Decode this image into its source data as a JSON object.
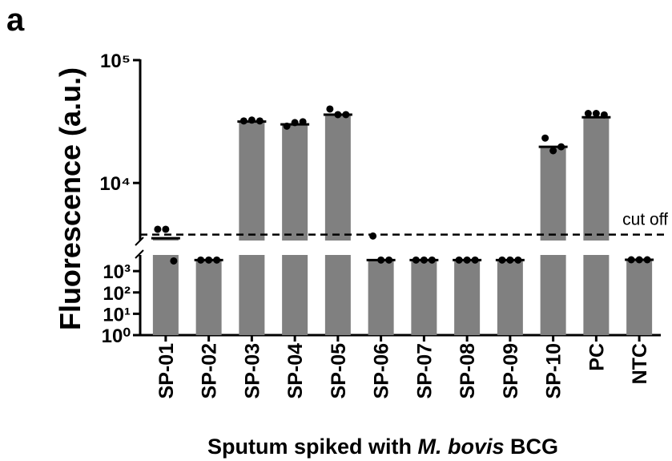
{
  "chart_data": {
    "type": "bar",
    "panel_label": "a",
    "y_label": "Fluorescence (a.u.)",
    "x_label": [
      "Sputum spiked with ",
      "M. bovis",
      " BCG"
    ],
    "categories": [
      "SP-01",
      "SP-02",
      "SP-03",
      "SP-04",
      "SP-05",
      "SP-06",
      "SP-07",
      "SP-08",
      "SP-09",
      "SP-10",
      "PC",
      "NTC"
    ],
    "values": [
      3550,
      3300,
      31600,
      30000,
      36000,
      3300,
      3300,
      3300,
      3300,
      19700,
      34300,
      3400
    ],
    "replicates": [
      [
        4200,
        4200,
        3000
      ],
      [
        3300,
        3300,
        3300
      ],
      [
        32000,
        32500,
        32000
      ],
      [
        29000,
        31000,
        31500
      ],
      [
        40000,
        36000,
        36000
      ],
      [
        3700,
        3300,
        3300
      ],
      [
        3300,
        3300,
        3300
      ],
      [
        3300,
        3300,
        3300
      ],
      [
        3300,
        3300,
        3300
      ],
      [
        23200,
        18300,
        19700
      ],
      [
        36800,
        36800,
        35800
      ],
      [
        3400,
        3400,
        3400
      ]
    ],
    "color": "#808080",
    "point_color": "#000000",
    "yscale": "log",
    "ylim": [
      1,
      100000
    ],
    "ybreak": 3400,
    "yticks": [
      {
        "value": 1,
        "label": "10⁰"
      },
      {
        "value": 10,
        "label": "10¹"
      },
      {
        "value": 100,
        "label": "10²"
      },
      {
        "value": 1000,
        "label": "10³"
      },
      {
        "value": 10000,
        "label": "10⁴"
      },
      {
        "value": 100000,
        "label": "10⁵"
      }
    ],
    "cutoff": {
      "value": 3800,
      "label": "cut off"
    }
  }
}
